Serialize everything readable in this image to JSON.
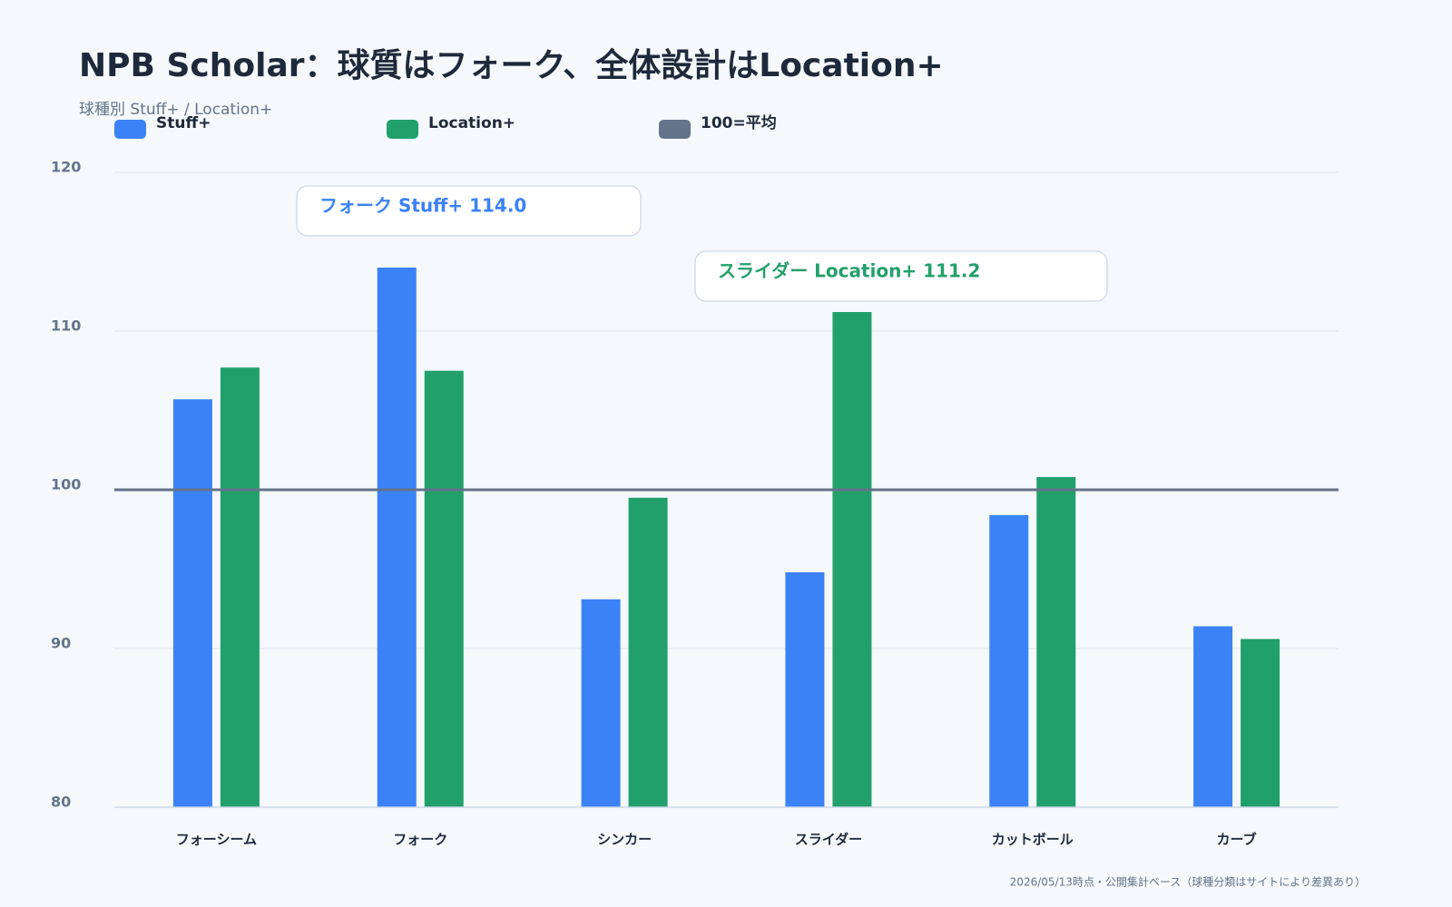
{
  "chart_data": {
    "type": "bar",
    "title": "NPB Scholar：球質はフォーク、全体設計はLocation+",
    "subtitle": "球種別 Stuff+ / Location+",
    "categories": [
      "フォーシーム",
      "フォーク",
      "シンカー",
      "スライダー",
      "カットボール",
      "カーブ"
    ],
    "series": [
      {
        "name": "Stuff+",
        "color": "#3b82f6",
        "values": [
          105.7,
          114.0,
          93.1,
          94.8,
          98.4,
          91.4
        ]
      },
      {
        "name": "Location+",
        "color": "#22a06b",
        "values": [
          107.7,
          107.5,
          99.5,
          111.2,
          100.8,
          90.6
        ]
      }
    ],
    "reference_line": {
      "value": 100,
      "label": "100=平均",
      "color": "#64748b"
    },
    "ylim": [
      80,
      120
    ],
    "yticks": [
      80,
      90,
      100,
      110,
      120
    ],
    "grid": true,
    "annotations": [
      {
        "text": "フォーク Stuff+ 114.0",
        "color": "#3b82f6"
      },
      {
        "text": "スライダー Location+ 111.2",
        "color": "#22a06b"
      }
    ],
    "footnote": "2026/05/13時点・公開集計ベース（球種分類はサイトにより差異あり）"
  }
}
